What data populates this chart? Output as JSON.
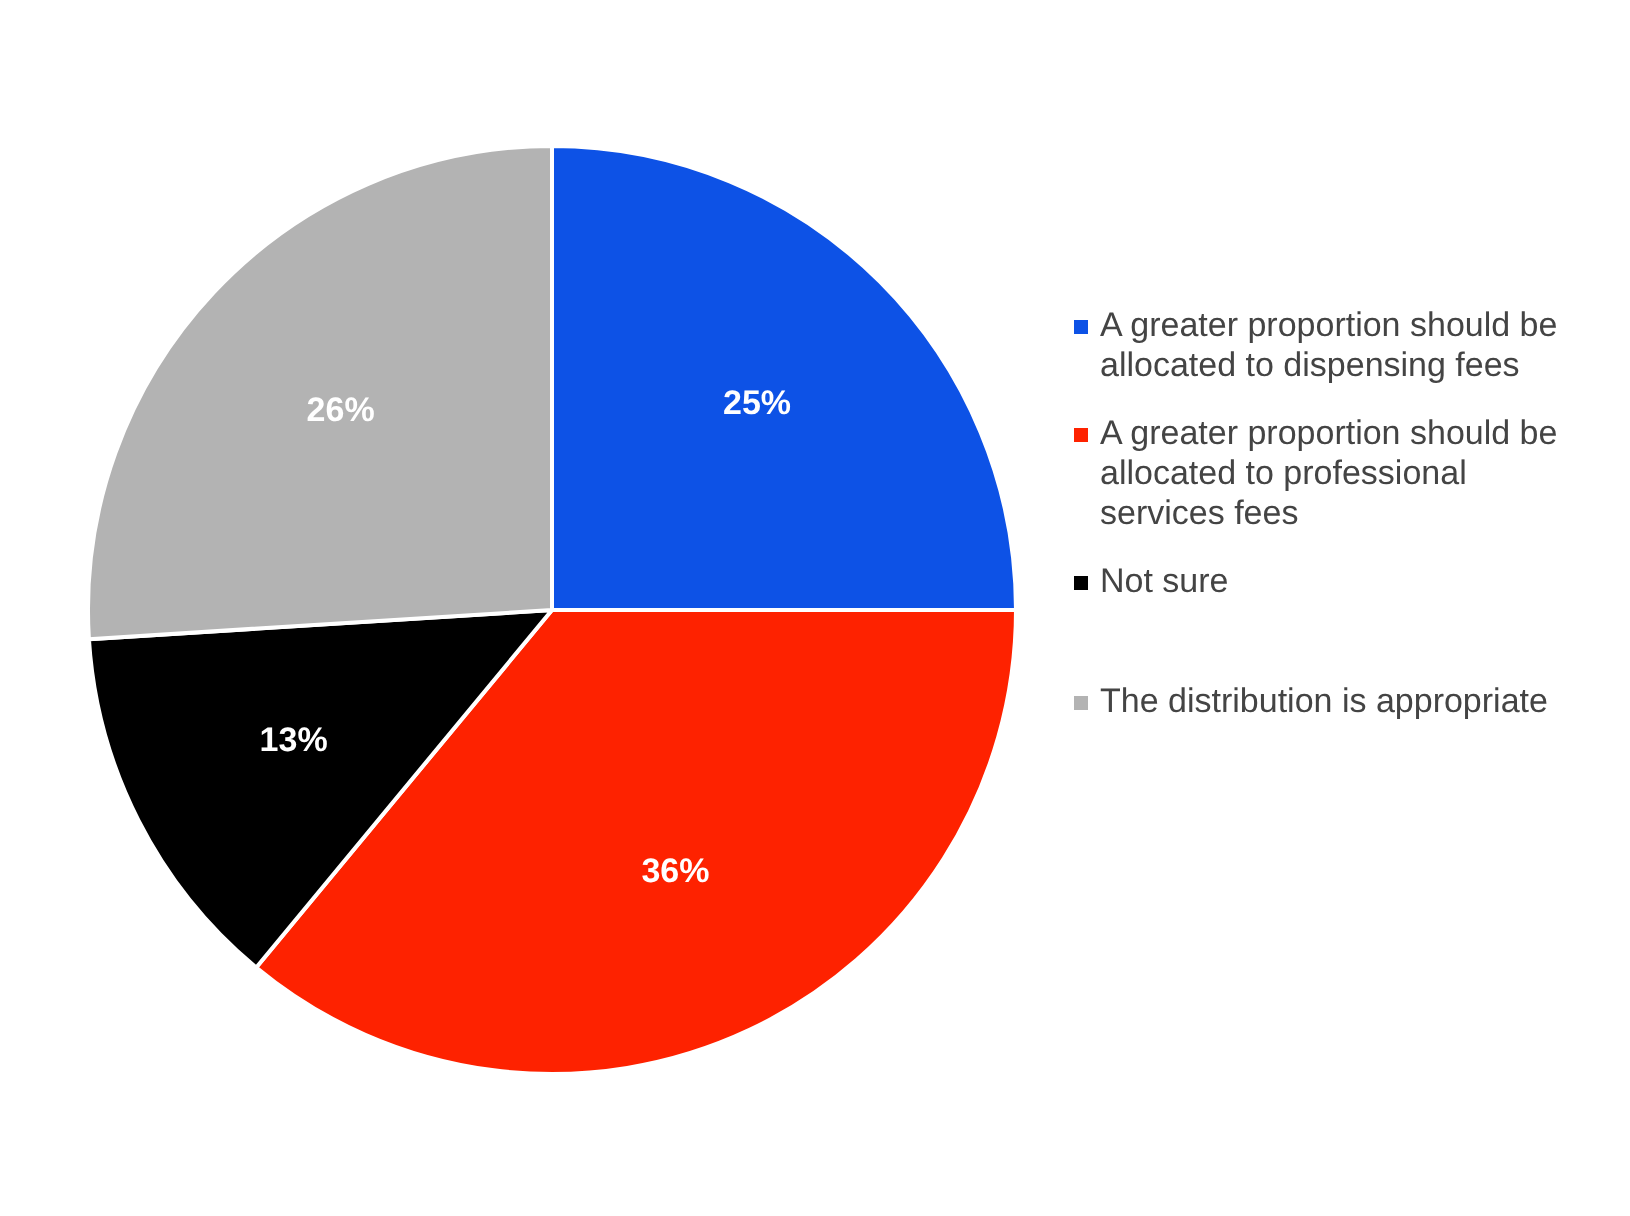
{
  "chart_data": {
    "type": "pie",
    "categories": [
      "A greater proportion should be allocated to dispensing fees",
      "A greater proportion should be allocated to professional services fees",
      "Not sure",
      "The distribution is appropriate"
    ],
    "values": [
      25,
      36,
      13,
      26
    ],
    "colors": [
      "#0d52e6",
      "#fe2200",
      "#000000",
      "#b3b3b3"
    ],
    "value_labels": [
      "25%",
      "36%",
      "13%",
      "26%"
    ],
    "legend": "right"
  }
}
